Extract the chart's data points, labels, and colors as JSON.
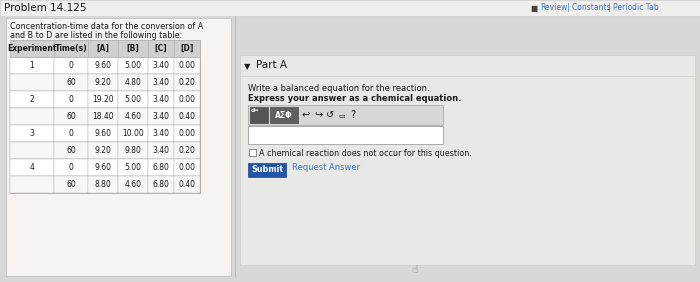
{
  "title": "Problem 14.125",
  "nav_text": "■ Review | Constants | Periodic Tab",
  "part_label": "Part A",
  "intro_line1": "Concentration-time data for the conversion of A",
  "intro_line2": "and B to D are listed in the following table:",
  "part_a_q1": "Write a balanced equation for the reaction.",
  "part_a_q2": "Express your answer as a chemical equation.",
  "checkbox_text": "A chemical reaction does not occur for this question.",
  "submit_text": "Submit",
  "request_text": "Request Answer",
  "table_headers": [
    "Experiment",
    "Time(s)",
    "[A]",
    "[B]",
    "[C]",
    "[D]"
  ],
  "table_data": [
    [
      "1",
      "0",
      "9.60",
      "5.00",
      "3.40",
      "0.00"
    ],
    [
      "",
      "60",
      "9.20",
      "4.80",
      "3.40",
      "0.20"
    ],
    [
      "2",
      "0",
      "19.20",
      "5.00",
      "3.40",
      "0.00"
    ],
    [
      "",
      "60",
      "18.40",
      "4.60",
      "3.40",
      "0.40"
    ],
    [
      "3",
      "0",
      "9.60",
      "10.00",
      "3.40",
      "0.00"
    ],
    [
      "",
      "60",
      "9.20",
      "9.80",
      "3.40",
      "0.20"
    ],
    [
      "4",
      "0",
      "9.60",
      "5.00",
      "6.80",
      "0.00"
    ],
    [
      "",
      "60",
      "8.80",
      "4.60",
      "6.80",
      "0.40"
    ]
  ],
  "page_bg": "#d8d8d8",
  "top_bar_bg": "#f0efee",
  "left_section_bg": "#eaeaea",
  "right_section_bg": "#e2e2e2",
  "white_panel_bg": "#f5f4f2",
  "table_header_bg": "#d0d0d0",
  "table_row_bg": "#ffffff",
  "table_alt_bg": "#f7f7f7",
  "table_border": "#b0b0b0",
  "toolbar_bg": "#d8d7d5",
  "toolbar_btn_bg": "#6a6a6a",
  "input_bg": "#ffffff",
  "submit_bg": "#2255aa",
  "text_dark": "#1a1a1a",
  "text_blue": "#3377cc",
  "nav_icon_color": "#333333"
}
